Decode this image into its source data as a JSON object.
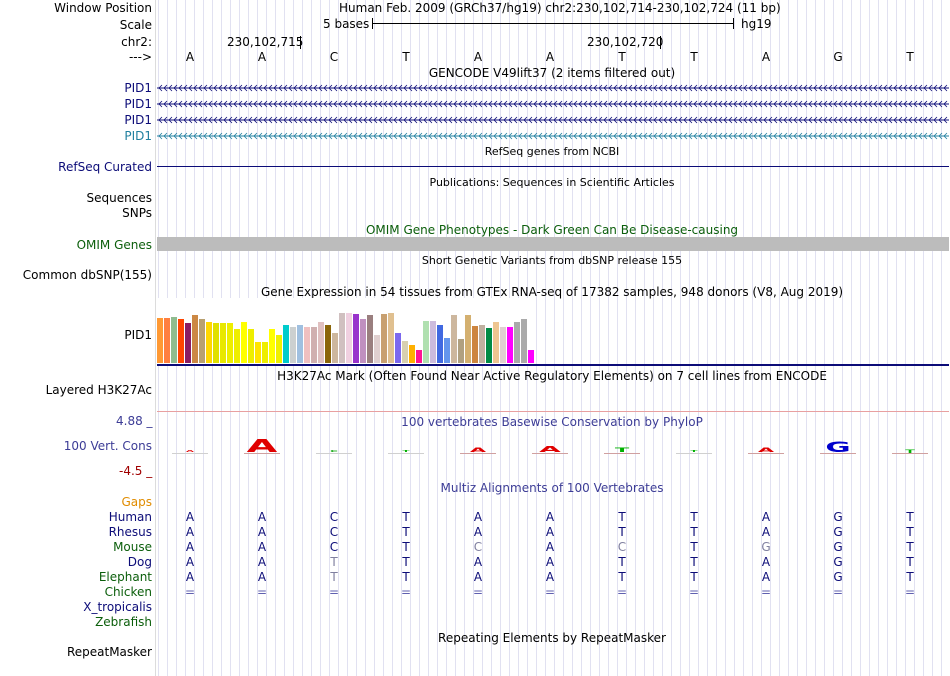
{
  "header": {
    "window_position_label": "Window Position",
    "window_position_value": "Human Feb. 2009 (GRCh37/hg19)   chr2:230,102,714-230,102,724 (11 bp)",
    "scale_label": "Scale",
    "scale_text": "5 bases",
    "scale_assembly": "hg19",
    "chrom_label": "chr2:",
    "coord_left": "230,102,715",
    "coord_right": "230,102,720",
    "strand_label": "--->",
    "bases": [
      "A",
      "A",
      "C",
      "T",
      "A",
      "A",
      "T",
      "T",
      "A",
      "G",
      "T"
    ]
  },
  "gencode": {
    "title": "GENCODE V49lift37 (2 items filtered out)",
    "rows": [
      "PID1",
      "PID1",
      "PID1",
      "PID1"
    ],
    "colors": [
      "#0c0c78",
      "#0c0c78",
      "#0c0c78",
      "#1f7f9f"
    ]
  },
  "refseq": {
    "title": "RefSeq genes from NCBI",
    "label": "RefSeq Curated",
    "color": "#0c0c78"
  },
  "publications": {
    "title": "Publications: Sequences in Scientific Articles",
    "label1": "Sequences",
    "label2": "SNPs"
  },
  "omim": {
    "title": "OMIM Gene Phenotypes - Dark Green Can Be Disease-causing",
    "label": "OMIM Genes",
    "color": "#0b5e0b"
  },
  "dbsnp": {
    "title": "Short Genetic Variants from dbSNP release 155",
    "label": "Common dbSNP(155)"
  },
  "gtex": {
    "title": "Gene Expression in 54 tissues from GTEx RNA-seq of 17382 samples, 948 donors (V8, Aug 2019)",
    "label": "PID1"
  },
  "h3k27ac": {
    "title": "H3K27Ac Mark (Often Found Near Active Regulatory Elements) on 7 cell lines from ENCODE",
    "label": "Layered H3K27Ac"
  },
  "phylop": {
    "title": "100 vertebrates Basewise Conservation by PhyloP",
    "label": "100 Vert. Cons",
    "ymax": "4.88 _",
    "ymin": "-4.5 _",
    "scores": [
      -0.4,
      2.6,
      0.3,
      0.2,
      0.9,
      1.1,
      0.9,
      0.2,
      0.8,
      2.0,
      0.6
    ]
  },
  "multiz": {
    "title": "Multiz Alignments of 100 Vertebrates",
    "gaps_label": "Gaps",
    "species": [
      {
        "name": "Human",
        "color": "#0c0c78",
        "seq": [
          "A",
          "A",
          "C",
          "T",
          "A",
          "A",
          "T",
          "T",
          "A",
          "G",
          "T"
        ]
      },
      {
        "name": "Rhesus",
        "color": "#0c0c78",
        "seq": [
          "A",
          "A",
          "C",
          "T",
          "A",
          "A",
          "T",
          "T",
          "A",
          "G",
          "T"
        ]
      },
      {
        "name": "Mouse",
        "color": "#0b5e0b",
        "seq": [
          "A",
          "A",
          "C",
          "T",
          "C",
          "A",
          "C",
          "T",
          "G",
          "G",
          "T"
        ]
      },
      {
        "name": "Dog",
        "color": "#0c0c78",
        "seq": [
          "A",
          "A",
          "T",
          "T",
          "A",
          "A",
          "T",
          "T",
          "A",
          "G",
          "T"
        ]
      },
      {
        "name": "Elephant",
        "color": "#0b5e0b",
        "seq": [
          "A",
          "A",
          "T",
          "T",
          "A",
          "A",
          "T",
          "T",
          "A",
          "G",
          "T"
        ]
      },
      {
        "name": "Chicken",
        "color": "#0b5e0b",
        "seq": [
          "=",
          "=",
          "=",
          "=",
          "=",
          "=",
          "=",
          "=",
          "=",
          "=",
          "="
        ]
      },
      {
        "name": "X_tropicalis",
        "color": "#0c0c78",
        "seq": [
          "",
          "",
          "",
          "",
          "",
          "",
          "",
          "",
          "",
          "",
          ""
        ]
      },
      {
        "name": "Zebrafish",
        "color": "#0b5e0b",
        "seq": [
          "",
          "",
          "",
          "",
          "",
          "",
          "",
          "",
          "",
          "",
          ""
        ]
      }
    ]
  },
  "repeatmasker": {
    "title": "Repeating Elements by RepeatMasker",
    "label": "RepeatMasker"
  },
  "colors": {
    "grid": "#c8c8e6",
    "label_blue": "#0c0c78",
    "label_green": "#0b5e0b",
    "gaps_orange": "#e08c00",
    "phylop_pos": "#3c3c96",
    "phylop_neg": "#a00000",
    "h3k27ac_line": "#e8a0a0"
  },
  "chart_data": {
    "type": "bar",
    "title": "Gene Expression in 54 tissues from GTEx RNA-seq of 17382 samples, 948 donors (V8, Aug 2019)",
    "xlabel": "",
    "ylabel": "",
    "ylim": [
      0,
      64
    ],
    "values": [
      45,
      45,
      46,
      44,
      40,
      48,
      44,
      41,
      40,
      40,
      40,
      34,
      41,
      34,
      21,
      21,
      34,
      28,
      38,
      36,
      38,
      36,
      36,
      41,
      38,
      30,
      50,
      50,
      49,
      44,
      48,
      28,
      49,
      50,
      30,
      22,
      18,
      13,
      42,
      42,
      38,
      25,
      48,
      24,
      48,
      37,
      38,
      35,
      41,
      36,
      36,
      41,
      44,
      13
    ],
    "colors": [
      "#ff9933",
      "#ff7f3f",
      "#8fbc8f",
      "#ff4500",
      "#8b1c62",
      "#cc8844",
      "#b8a070",
      "#ffd700",
      "#e0e000",
      "#e8e800",
      "#eeee00",
      "#eeee00",
      "#ffff00",
      "#eeee00",
      "#ffe400",
      "#eeee00",
      "#ffff00",
      "#f0f000",
      "#00cccc",
      "#ccd0d0",
      "#a0c0e0",
      "#f0c0c0",
      "#d0b0b0",
      "#e0c0c0",
      "#8b6508",
      "#cdb79e",
      "#d0c0c0",
      "#f0d0e0",
      "#9932cc",
      "#c090c0",
      "#9a7f7f",
      "#e0d0d0",
      "#c8a070",
      "#e0c090",
      "#7b68ee",
      "#d8d0b0",
      "#ffb000",
      "#ff1493",
      "#b0e0b0",
      "#ccbbdd",
      "#4169e1",
      "#6495ed",
      "#cdb79e",
      "#b0a080",
      "#d4b070",
      "#cd853f",
      "#c0b0a0",
      "#008b45",
      "#eec591",
      "#e0d0d0",
      "#ff00ff",
      "#aaaaaa",
      "#aaaaaa",
      "#ff00ff"
    ]
  }
}
